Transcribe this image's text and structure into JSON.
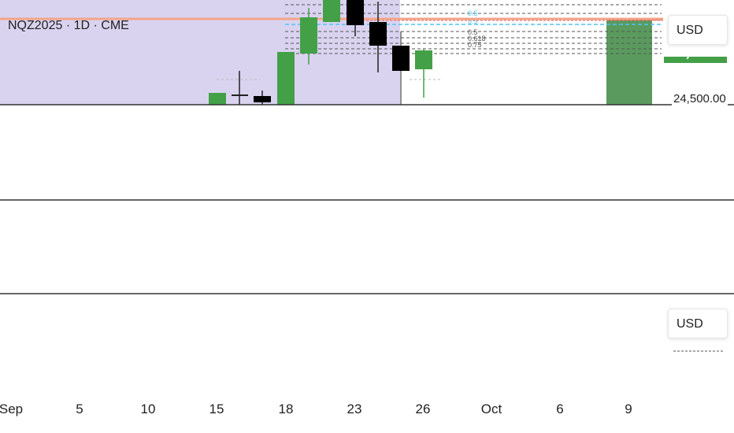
{
  "header": {
    "symbol": "NQZ2025 · 1D · CME"
  },
  "currency_buttons": {
    "top": "USD",
    "bottom": "USD"
  },
  "price_axis": {
    "visible_label": "24,500.00"
  },
  "fib_levels": [
    "0.5",
    "0.5",
    "0.5",
    "0.618",
    "0.75"
  ],
  "time_axis": {
    "labels": [
      "Sep",
      "5",
      "10",
      "15",
      "18",
      "23",
      "26",
      "Oct",
      "6",
      "9"
    ]
  },
  "colors": {
    "bull": "#43a047",
    "bear": "#000000",
    "highlight_zone": "#d9d3f0",
    "horizontal_line": "#f4a488",
    "fib_cyan": "#4fc3f7",
    "long_position": "#5a9a5e"
  },
  "icons": {
    "price-arrow": "chevron-icon"
  }
}
